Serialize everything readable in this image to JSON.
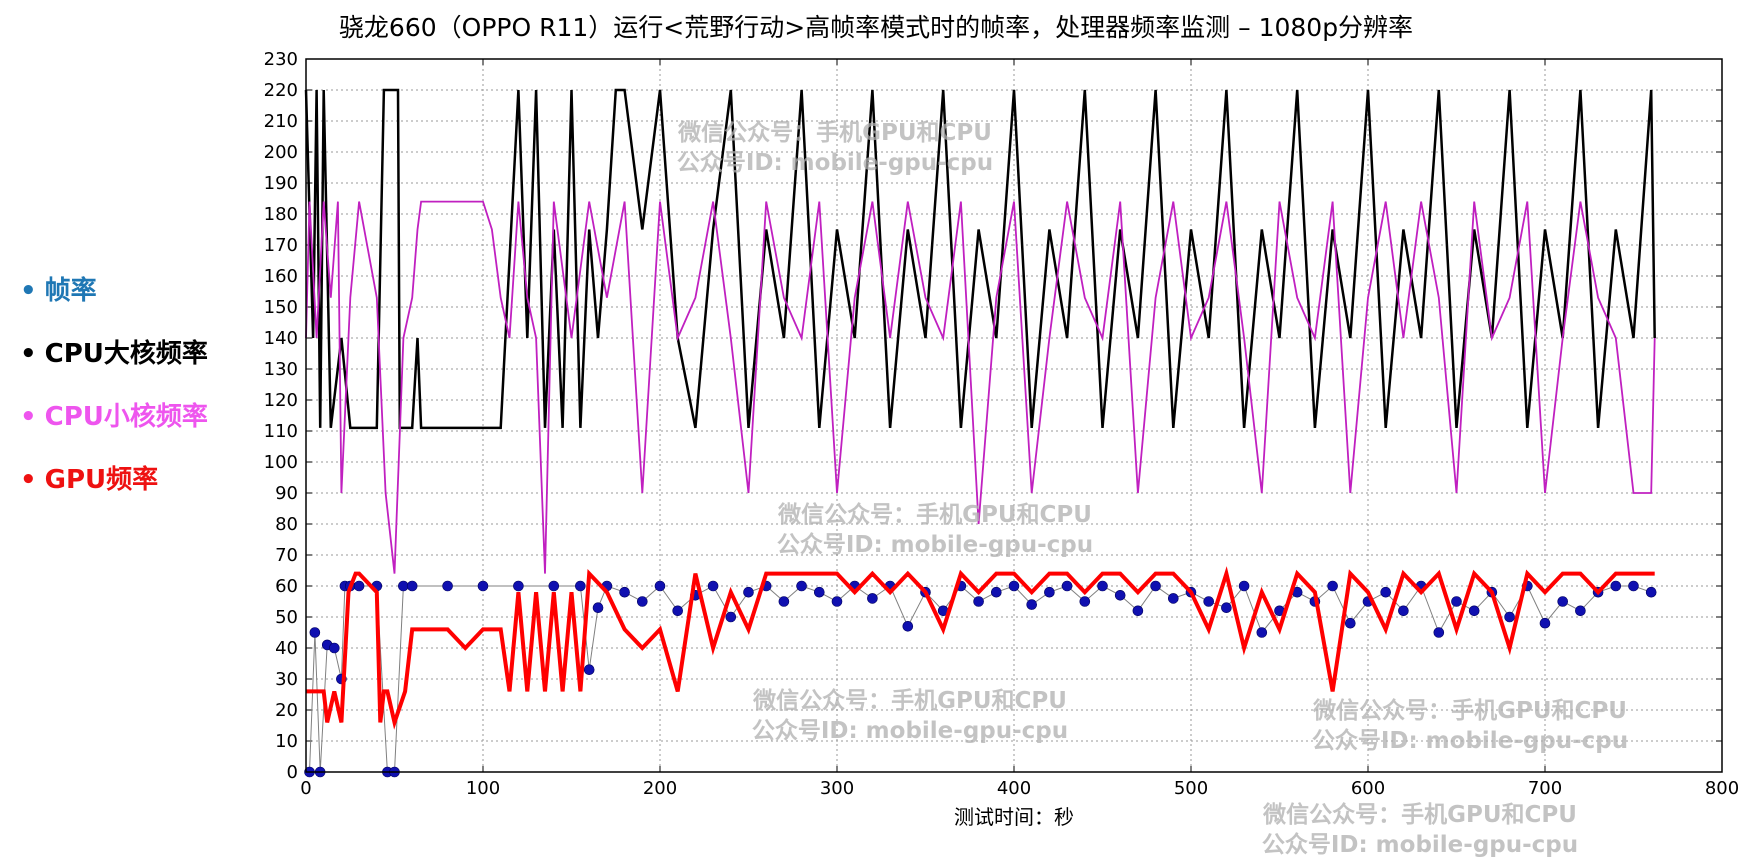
{
  "chart_data": {
    "type": "line",
    "title": "骁龙660（OPPO R11）运行<荒野行动>高帧率模式时的帧率，处理器频率监测 – 1080p分辨率",
    "xlabel": "测试时间：秒",
    "ylabel": "",
    "xlim": [
      0,
      800
    ],
    "ylim": [
      0,
      230
    ],
    "xticks": [
      0,
      100,
      200,
      300,
      400,
      500,
      600,
      700,
      800
    ],
    "yticks": [
      0,
      10,
      20,
      30,
      40,
      50,
      60,
      70,
      80,
      90,
      100,
      110,
      120,
      130,
      140,
      150,
      160,
      170,
      180,
      190,
      200,
      210,
      220,
      230
    ],
    "grid": true,
    "legend_position": "left",
    "legend": [
      {
        "label": "帧率",
        "color": "#1f77b4"
      },
      {
        "label": "CPU大核频率",
        "color": "#000000"
      },
      {
        "label": "CPU小核频率",
        "color": "#ee55ee"
      },
      {
        "label": "GPU频率",
        "color": "#ee1111"
      }
    ],
    "series": [
      {
        "name": "帧率",
        "color": "#1010b0",
        "style": "markers",
        "x": [
          2,
          5,
          8,
          12,
          16,
          20,
          22,
          25,
          30,
          40,
          46,
          50,
          55,
          60,
          80,
          100,
          120,
          140,
          155,
          160,
          165,
          170,
          180,
          190,
          200,
          210,
          220,
          230,
          240,
          250,
          260,
          270,
          280,
          290,
          300,
          310,
          320,
          330,
          340,
          350,
          360,
          370,
          380,
          390,
          400,
          410,
          420,
          430,
          440,
          450,
          460,
          470,
          480,
          490,
          500,
          510,
          520,
          530,
          540,
          550,
          560,
          570,
          580,
          590,
          600,
          610,
          620,
          630,
          640,
          650,
          660,
          670,
          680,
          690,
          700,
          710,
          720,
          730,
          740,
          750,
          760
        ],
        "y": [
          0,
          45,
          0,
          41,
          40,
          30,
          60,
          60,
          60,
          60,
          0,
          0,
          60,
          60,
          60,
          60,
          60,
          60,
          60,
          33,
          53,
          60,
          58,
          55,
          60,
          52,
          57,
          60,
          50,
          58,
          60,
          55,
          60,
          58,
          55,
          60,
          56,
          60,
          47,
          58,
          52,
          60,
          55,
          58,
          60,
          54,
          58,
          60,
          55,
          60,
          57,
          52,
          60,
          56,
          58,
          55,
          53,
          60,
          45,
          52,
          58,
          55,
          60,
          48,
          55,
          58,
          52,
          60,
          45,
          55,
          52,
          58,
          50,
          60,
          48,
          55,
          52,
          58,
          60,
          60,
          58
        ]
      },
      {
        "name": "CPU大核频率",
        "color": "#000000",
        "style": "line",
        "x": [
          0,
          4,
          6,
          8,
          10,
          14,
          20,
          25,
          30,
          40,
          44,
          45,
          52,
          53,
          60,
          63,
          65,
          68,
          80,
          100,
          110,
          120,
          125,
          130,
          135,
          140,
          145,
          150,
          155,
          160,
          165,
          170,
          175,
          180,
          190,
          200,
          210,
          220,
          230,
          240,
          250,
          260,
          270,
          280,
          290,
          300,
          310,
          320,
          330,
          340,
          350,
          360,
          370,
          380,
          390,
          400,
          410,
          420,
          430,
          440,
          450,
          460,
          470,
          480,
          490,
          500,
          510,
          520,
          530,
          540,
          550,
          560,
          570,
          580,
          590,
          600,
          610,
          620,
          630,
          640,
          650,
          660,
          670,
          680,
          690,
          700,
          710,
          720,
          730,
          740,
          750,
          760,
          762
        ],
        "y": [
          220,
          140,
          220,
          111,
          220,
          111,
          140,
          111,
          111,
          111,
          220,
          220,
          220,
          111,
          111,
          140,
          111,
          111,
          111,
          111,
          111,
          220,
          140,
          220,
          111,
          175,
          111,
          220,
          111,
          175,
          140,
          175,
          220,
          220,
          175,
          220,
          140,
          111,
          175,
          220,
          111,
          175,
          140,
          220,
          111,
          175,
          140,
          220,
          111,
          175,
          140,
          220,
          111,
          175,
          140,
          220,
          111,
          175,
          140,
          220,
          111,
          175,
          140,
          220,
          111,
          175,
          140,
          220,
          111,
          175,
          140,
          220,
          111,
          175,
          140,
          220,
          111,
          175,
          140,
          220,
          111,
          175,
          140,
          220,
          111,
          175,
          140,
          220,
          111,
          175,
          140,
          220,
          140
        ]
      },
      {
        "name": "CPU小核频率",
        "color": "#c020c0",
        "style": "line",
        "x": [
          0,
          2,
          6,
          10,
          14,
          18,
          20,
          25,
          30,
          40,
          45,
          50,
          55,
          60,
          63,
          65,
          75,
          100,
          105,
          110,
          115,
          120,
          125,
          130,
          135,
          140,
          150,
          160,
          170,
          180,
          190,
          200,
          210,
          220,
          230,
          240,
          250,
          260,
          270,
          280,
          290,
          300,
          310,
          320,
          330,
          340,
          350,
          360,
          370,
          380,
          390,
          400,
          410,
          420,
          430,
          440,
          450,
          460,
          470,
          480,
          490,
          500,
          510,
          520,
          530,
          540,
          550,
          560,
          570,
          580,
          590,
          600,
          610,
          620,
          630,
          640,
          650,
          660,
          670,
          680,
          690,
          700,
          710,
          720,
          730,
          740,
          750,
          760,
          762
        ],
        "y": [
          140,
          184,
          140,
          184,
          153,
          184,
          90,
          153,
          184,
          153,
          90,
          64,
          140,
          153,
          175,
          184,
          184,
          184,
          175,
          153,
          140,
          184,
          153,
          140,
          64,
          184,
          140,
          184,
          153,
          184,
          90,
          184,
          140,
          153,
          184,
          140,
          90,
          184,
          153,
          140,
          184,
          90,
          153,
          184,
          140,
          184,
          153,
          140,
          184,
          80,
          153,
          184,
          90,
          140,
          184,
          153,
          140,
          184,
          90,
          153,
          184,
          140,
          153,
          184,
          140,
          90,
          184,
          153,
          140,
          184,
          90,
          153,
          184,
          140,
          184,
          153,
          90,
          184,
          140,
          153,
          184,
          90,
          140,
          184,
          153,
          140,
          90,
          90,
          140
        ]
      },
      {
        "name": "GPU频率",
        "color": "#ff0000",
        "style": "line",
        "x": [
          0,
          10,
          12,
          16,
          20,
          24,
          28,
          30,
          40,
          42,
          44,
          46,
          50,
          56,
          60,
          80,
          90,
          100,
          110,
          115,
          120,
          125,
          130,
          135,
          140,
          145,
          150,
          155,
          160,
          170,
          180,
          190,
          200,
          210,
          220,
          230,
          240,
          250,
          260,
          270,
          280,
          290,
          300,
          310,
          320,
          330,
          340,
          350,
          360,
          370,
          380,
          390,
          400,
          410,
          420,
          430,
          440,
          450,
          460,
          470,
          480,
          490,
          500,
          510,
          520,
          530,
          540,
          550,
          560,
          570,
          580,
          590,
          600,
          610,
          620,
          630,
          640,
          650,
          660,
          670,
          680,
          690,
          700,
          710,
          720,
          730,
          740,
          750,
          760,
          762
        ],
        "y": [
          26,
          26,
          16,
          26,
          16,
          58,
          64,
          64,
          58,
          16,
          26,
          26,
          16,
          26,
          46,
          46,
          40,
          46,
          46,
          26,
          58,
          26,
          58,
          26,
          58,
          26,
          58,
          26,
          64,
          58,
          46,
          40,
          46,
          26,
          64,
          40,
          58,
          46,
          64,
          64,
          64,
          64,
          64,
          58,
          64,
          58,
          64,
          58,
          46,
          64,
          58,
          64,
          64,
          58,
          64,
          64,
          58,
          64,
          64,
          58,
          64,
          64,
          58,
          46,
          64,
          40,
          58,
          46,
          64,
          58,
          26,
          64,
          58,
          46,
          64,
          58,
          64,
          46,
          64,
          58,
          40,
          64,
          58,
          64,
          64,
          58,
          64,
          64,
          64,
          64
        ]
      }
    ]
  },
  "watermarks": [
    {
      "line1": "微信公众号：手机GPU和CPU",
      "line2": "公众号ID: mobile-gpu-cpu"
    },
    {
      "line1": "微信公众号：手机GPU和CPU",
      "line2": "公众号ID: mobile-gpu-cpu"
    },
    {
      "line1": "微信公众号：手机GPU和CPU",
      "line2": "公众号ID: mobile-gpu-cpu"
    },
    {
      "line1": "微信公众号：手机GPU和CPU",
      "line2": "公众号ID: mobile-gpu-cpu"
    },
    {
      "line1": "微信公众号：手机GPU和CPU",
      "line2": "公众号ID: mobile-gpu-cpu"
    }
  ]
}
